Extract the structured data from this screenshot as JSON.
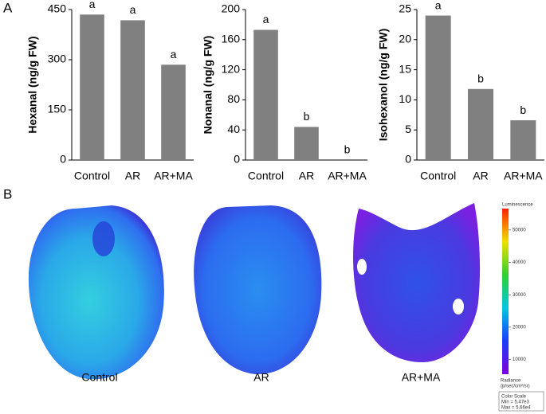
{
  "panels": [
    "A",
    "B"
  ],
  "chart_data": [
    {
      "type": "bar",
      "ylabel": "Hexanal (ng/g FW)",
      "categories": [
        "Control",
        "AR",
        "AR+MA"
      ],
      "values": [
        435,
        418,
        285
      ],
      "annotations": [
        "a",
        "a",
        "a"
      ],
      "color": "#808080",
      "ylim": [
        0,
        450
      ],
      "yticks": [
        0,
        150,
        300,
        450
      ]
    },
    {
      "type": "bar",
      "ylabel": "Nonanal (ng/g FW)",
      "categories": [
        "Control",
        "AR",
        "AR+MA"
      ],
      "values": [
        173,
        44,
        0
      ],
      "annotations": [
        "a",
        "b",
        "b"
      ],
      "color": "#808080",
      "ylim": [
        0,
        200
      ],
      "yticks": [
        0,
        40,
        80,
        120,
        160,
        200
      ]
    },
    {
      "type": "bar",
      "ylabel": "Isohexanol (ng/g FW)",
      "categories": [
        "Control",
        "AR",
        "AR+MA"
      ],
      "values": [
        24,
        11.8,
        6.6
      ],
      "annotations": [
        "a",
        "b",
        "b"
      ],
      "color": "#808080",
      "ylim": [
        0,
        25
      ],
      "yticks": [
        0,
        5,
        10,
        15,
        20,
        25
      ]
    }
  ],
  "images": {
    "captions": [
      "Control",
      "AR",
      "AR+MA"
    ]
  },
  "color_scale": {
    "title": "Luminescence",
    "range": [
      5470,
      56600
    ],
    "ticks": [
      10000,
      20000,
      30000,
      40000,
      50000
    ],
    "unit_title": "Radiance",
    "unit": "(p/sec/cm²/sr)",
    "box_title": "Color Scale",
    "min_label": "Min = 5.47e3",
    "max_label": "Max = 5.66e4"
  }
}
